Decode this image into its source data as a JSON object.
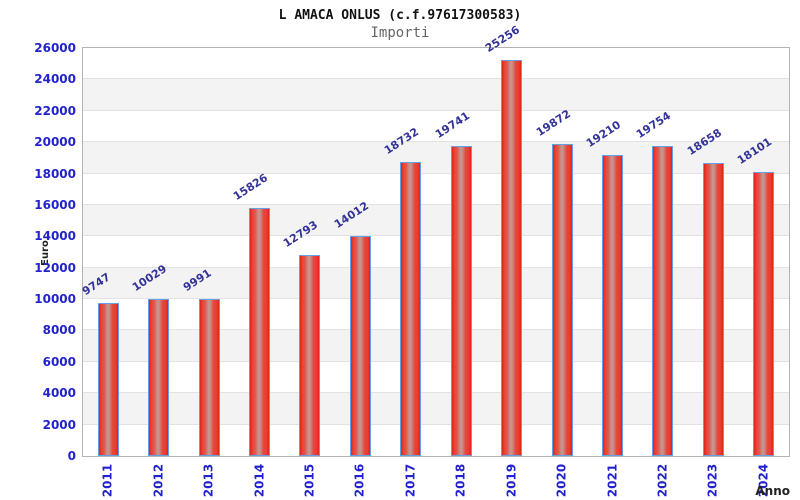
{
  "title": "L AMACA ONLUS (c.f.97617300583)",
  "subtitle": "Importi",
  "y_axis_label": "Euro",
  "x_axis_label": "Anno",
  "chart_data": {
    "type": "bar",
    "title": "L AMACA ONLUS (c.f.97617300583)",
    "subtitle": "Importi",
    "xlabel": "Anno",
    "ylabel": "Euro",
    "categories": [
      "2011",
      "2012",
      "2013",
      "2014",
      "2015",
      "2016",
      "2017",
      "2018",
      "2019",
      "2020",
      "2021",
      "2022",
      "2023",
      "2024"
    ],
    "values": [
      9747,
      10029,
      9991,
      15826,
      12793,
      14012,
      18732,
      19741,
      25256,
      19872,
      19210,
      19754,
      18658,
      18101
    ],
    "ylim": [
      0,
      26000
    ],
    "ytick_step": 2000,
    "grid": "alternating-horizontal-bands",
    "legend": "none",
    "bar_value_labels_rotated": true
  },
  "colors": {
    "bar_red": "#df2318",
    "bar_center_highlight": "#c6948f",
    "bar_border": "#64a0e8",
    "tick_label_blue": "#2222cc",
    "value_label_navy": "#333399",
    "band_gray": "#f3f3f3",
    "plot_border_gray": "#b3b3b3",
    "title_black": "#111111",
    "subtitle_gray": "#666666",
    "axis_title_dark": "#222222"
  }
}
